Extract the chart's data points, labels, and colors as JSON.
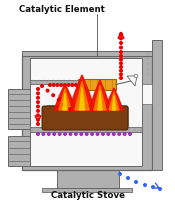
{
  "title_top": "Catalytic Element",
  "title_bottom": "Catalytic Stove",
  "bg_color": "#ffffff",
  "stove_gray": "#b0b0b0",
  "wall_color": "#666666",
  "inner_bg": "#f8f8f8",
  "catalytic_color": "#e8a020",
  "log_brown": "#7a3e10",
  "log_light": "#a06030",
  "fire_red": "#ee1100",
  "fire_orange": "#ff7700",
  "fire_yellow": "#ffcc00",
  "dot_red": "#ee0000",
  "dot_blue": "#3366ee",
  "dot_purple": "#9933bb",
  "text_color": "#111111",
  "line_color": "#555555"
}
